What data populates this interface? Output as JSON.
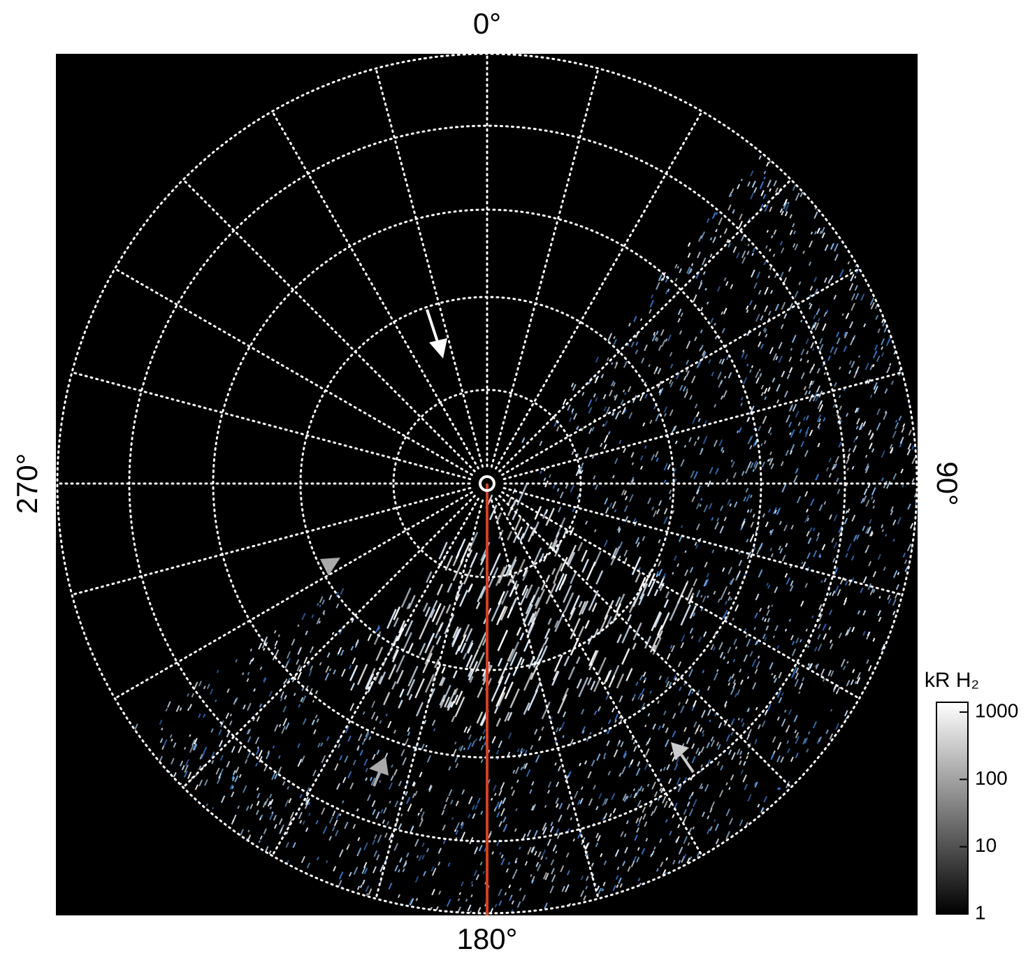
{
  "chart_data": {
    "type": "polar-image",
    "angle_ticks": [
      {
        "value": 0,
        "label": "0°"
      },
      {
        "value": 90,
        "label": "90°"
      },
      {
        "value": 180,
        "label": "180°"
      },
      {
        "value": 270,
        "label": "270°"
      }
    ],
    "colorbar": {
      "title": "kR H₂",
      "log_scale": true,
      "clim": [
        1,
        1400
      ],
      "ticks": [
        1,
        10,
        100,
        1000
      ]
    }
  }
}
